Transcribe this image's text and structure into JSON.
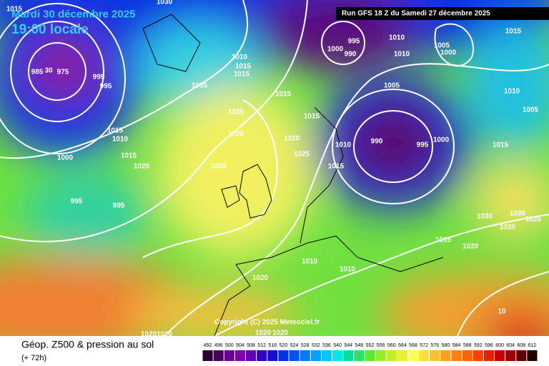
{
  "header": {
    "date": "Mardi 30 décembre 2025",
    "time": "19:00 locale",
    "run": "Run GFS 18 Z du Samedi 27 décembre 2025"
  },
  "isobar_labels": [
    "1015",
    "1030",
    "985",
    "30",
    "975",
    "995",
    "1000",
    "990",
    "1010",
    "1010",
    "1005",
    "1000",
    "1015",
    "1010",
    "1015",
    "1015",
    "995",
    "995",
    "1035",
    "1015",
    "1005",
    "1010",
    "1025",
    "1015",
    "1005",
    "1015",
    "1010",
    "1030",
    "1020",
    "990",
    "995",
    "1000",
    "1010",
    "1015",
    "1025",
    "1000",
    "1015",
    "1020",
    "1035",
    "1015",
    "995",
    "995",
    "1030",
    "1030",
    "1025",
    "1025",
    "1015",
    "1020",
    "1010",
    "1010",
    "1020",
    "1020",
    "1020",
    "1020",
    "1020",
    "10"
  ],
  "copyright": "Copyright (C) 2025 Meteociel.fr",
  "footer": {
    "title": "Géop. Z500 & pression au sol",
    "lead": "(+ 72h)"
  },
  "scale": {
    "values": [
      492,
      496,
      500,
      504,
      508,
      512,
      516,
      520,
      524,
      528,
      532,
      536,
      540,
      544,
      548,
      552,
      556,
      560,
      564,
      568,
      572,
      576,
      580,
      584,
      588,
      592,
      596,
      600,
      604,
      608,
      612
    ],
    "colors": [
      "#2a0030",
      "#4a0060",
      "#6a0090",
      "#8000a8",
      "#5a00b0",
      "#3000c0",
      "#1010d0",
      "#0030e8",
      "#0050ff",
      "#0078ff",
      "#00a0ff",
      "#00c8ff",
      "#00e8e8",
      "#00e0a0",
      "#30e060",
      "#60e830",
      "#90f020",
      "#c0f020",
      "#e8f030",
      "#ffff50",
      "#ffe040",
      "#ffc030",
      "#ffa020",
      "#ff8010",
      "#ff6000",
      "#ff4000",
      "#e82000",
      "#c80000",
      "#a00000",
      "#600000",
      "#200000"
    ]
  }
}
